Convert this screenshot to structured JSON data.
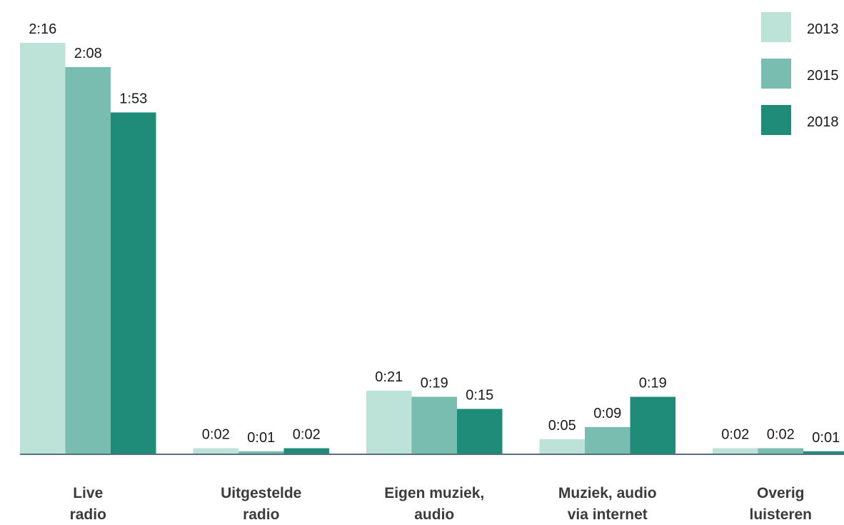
{
  "chart_data": {
    "type": "bar",
    "categories": [
      [
        "Live",
        "radio"
      ],
      [
        "Uitgestelde",
        "radio"
      ],
      [
        "Eigen muziek,",
        "audio"
      ],
      [
        "Muziek, audio",
        "via internet"
      ],
      [
        "Overig",
        "luisteren"
      ]
    ],
    "series": [
      {
        "name": "2013",
        "color": "#bde2d8",
        "values": [
          136,
          2,
          21,
          5,
          2
        ],
        "labels": [
          "2:16",
          "0:02",
          "0:21",
          "0:05",
          "0:02"
        ]
      },
      {
        "name": "2015",
        "color": "#79bcb0",
        "values": [
          128,
          1,
          19,
          9,
          2
        ],
        "labels": [
          "2:08",
          "0:01",
          "0:19",
          "0:09",
          "0:02"
        ]
      },
      {
        "name": "2018",
        "color": "#1f8c7a",
        "values": [
          113,
          2,
          15,
          19,
          1
        ],
        "labels": [
          "1:53",
          "0:02",
          "0:15",
          "0:19",
          "0:01"
        ]
      }
    ],
    "units": "minutes",
    "ylim": [
      0,
      136
    ],
    "grid": false,
    "legend": "top-right",
    "axis_color": "#5a6f7d"
  }
}
